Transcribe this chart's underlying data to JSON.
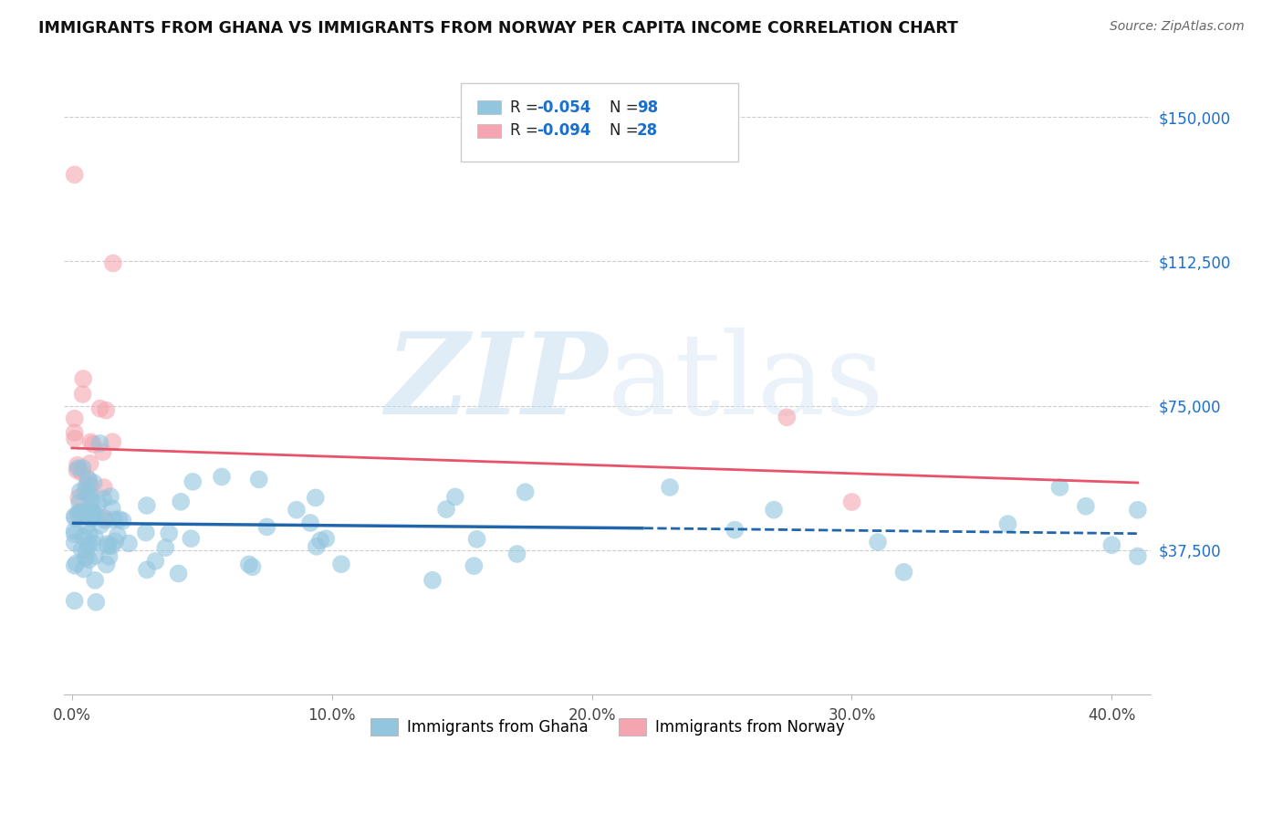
{
  "title": "IMMIGRANTS FROM GHANA VS IMMIGRANTS FROM NORWAY PER CAPITA INCOME CORRELATION CHART",
  "source": "Source: ZipAtlas.com",
  "xlabel_ticks": [
    "0.0%",
    "10.0%",
    "20.0%",
    "30.0%",
    "40.0%"
  ],
  "xlabel_vals": [
    0.0,
    0.1,
    0.2,
    0.3,
    0.4
  ],
  "ylabel_ticks": [
    "$37,500",
    "$75,000",
    "$112,500",
    "$150,000"
  ],
  "ylabel_vals": [
    37500,
    75000,
    112500,
    150000
  ],
  "ylim": [
    0,
    162000
  ],
  "xlim": [
    -0.003,
    0.415
  ],
  "ghana_R": -0.054,
  "ghana_N": 98,
  "norway_R": -0.094,
  "norway_N": 28,
  "ghana_color": "#92c5de",
  "norway_color": "#f4a5b0",
  "ghana_line_color": "#2166ac",
  "norway_line_color": "#e8536a",
  "watermark_zip": "ZIP",
  "watermark_atlas": "atlas",
  "legend_label_ghana": "Immigrants from Ghana",
  "legend_label_norway": "Immigrants from Norway",
  "ghana_line_x0": 0.0,
  "ghana_line_x1": 0.22,
  "ghana_line_x2": 0.41,
  "ghana_line_y0": 44500,
  "ghana_line_y1": 43200,
  "ghana_line_y2": 41800,
  "norway_line_x0": 0.0,
  "norway_line_x1": 0.41,
  "norway_line_y0": 64000,
  "norway_line_y1": 55000
}
